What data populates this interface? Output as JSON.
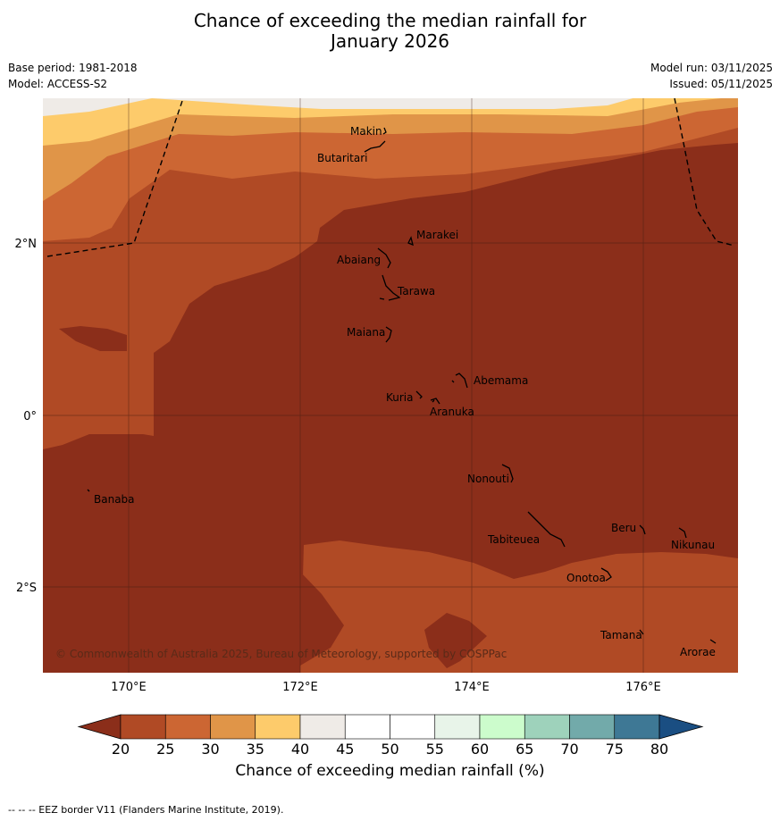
{
  "title_line1": "Chance of exceeding the median rainfall for",
  "title_line2": "January 2026",
  "base_period": "Base period: 1981-2018",
  "model": "Model: ACCESS-S2",
  "model_run": "Model run: 03/11/2025",
  "issued": "Issued: 05/11/2025",
  "copyright": "© Commonwealth of Australia 2025, Bureau of Meteorology, supported by COSPPac",
  "x_ticks": [
    "170°E",
    "172°E",
    "174°E",
    "176°E"
  ],
  "y_ticks": [
    "2°N",
    "0°",
    "2°S"
  ],
  "places": [
    "Makin",
    "Butaritari",
    "Marakei",
    "Abaiang",
    "Tarawa",
    "Maiana",
    "Abemama",
    "Kuria",
    "Aranuka",
    "Nonouti",
    "Banaba",
    "Beru",
    "Nikunau",
    "Tabiteuea",
    "Onotoa",
    "Tamana",
    "Arorae"
  ],
  "colorbar": {
    "ticks": [
      "20",
      "25",
      "30",
      "35",
      "40",
      "45",
      "50",
      "55",
      "60",
      "65",
      "70",
      "75",
      "80"
    ],
    "colors": [
      "#8b2e1a",
      "#b04a25",
      "#cc6633",
      "#e09548",
      "#fdcb6b",
      "#efebe7",
      "#ffffff",
      "#ffffff",
      "#e8f4e9",
      "#ccfccc",
      "#9ed2bb",
      "#72aaaa",
      "#3e7895",
      "#1a4e82"
    ],
    "label": "Chance of exceeding median rainfall (%)"
  },
  "footer": "--  --  -- EEZ border V11 (Flanders Marine Institute, 2019)."
}
